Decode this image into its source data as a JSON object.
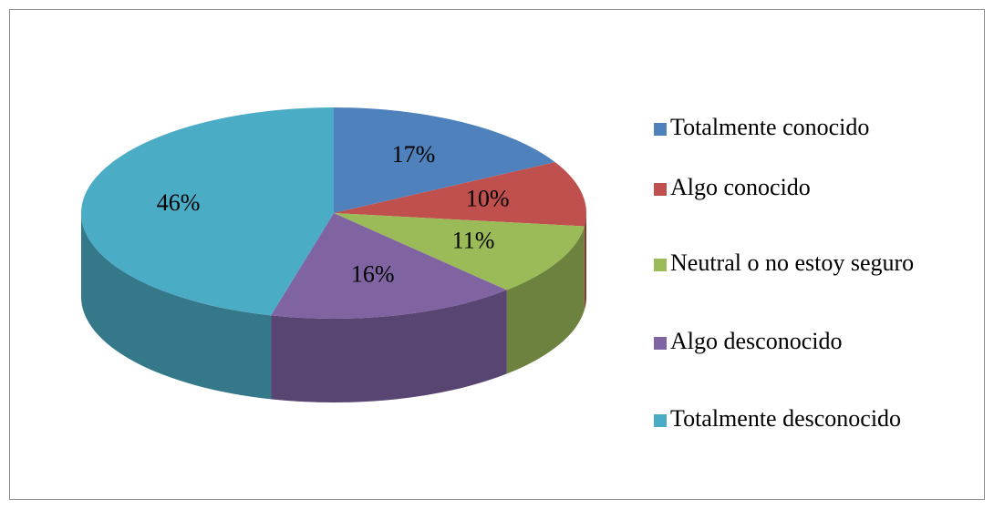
{
  "chart_data": {
    "type": "pie3d",
    "categories": [
      "Totalmente conocido",
      "Algo conocido",
      "Neutral o no estoy seguro",
      "Algo desconocido",
      "Totalmente desconocido"
    ],
    "values": [
      17,
      10,
      11,
      16,
      46
    ],
    "value_labels": [
      "17%",
      "10%",
      "11%",
      "16%",
      "46%"
    ],
    "colors": [
      "#4f81bd",
      "#c0504d",
      "#9bbb59",
      "#8064a2",
      "#4bacc6"
    ],
    "legend": "right"
  }
}
